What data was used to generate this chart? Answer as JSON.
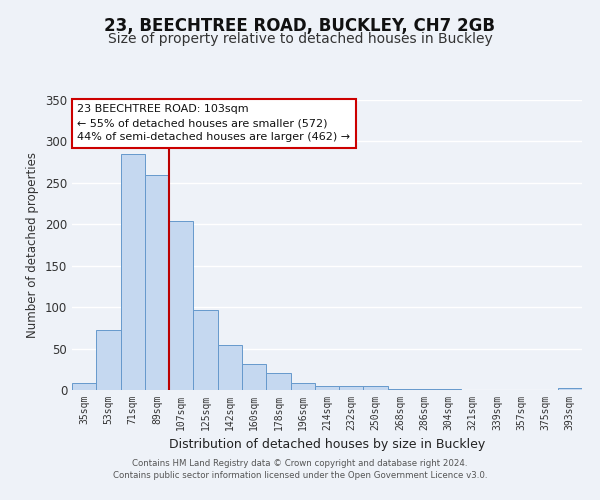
{
  "title": "23, BEECHTREE ROAD, BUCKLEY, CH7 2GB",
  "subtitle": "Size of property relative to detached houses in Buckley",
  "xlabel": "Distribution of detached houses by size in Buckley",
  "ylabel": "Number of detached properties",
  "bar_labels": [
    "35sqm",
    "53sqm",
    "71sqm",
    "89sqm",
    "107sqm",
    "125sqm",
    "142sqm",
    "160sqm",
    "178sqm",
    "196sqm",
    "214sqm",
    "232sqm",
    "250sqm",
    "268sqm",
    "286sqm",
    "304sqm",
    "321sqm",
    "339sqm",
    "357sqm",
    "375sqm",
    "393sqm"
  ],
  "bar_heights": [
    9,
    73,
    285,
    260,
    204,
    96,
    54,
    31,
    21,
    8,
    5,
    5,
    5,
    1,
    1,
    1,
    0,
    0,
    0,
    0,
    3
  ],
  "bar_color": "#c5d8f0",
  "bar_edge_color": "#6699cc",
  "bar_width": 1.0,
  "vline_color": "#bb0000",
  "vline_x": 3.5,
  "ylim": [
    0,
    350
  ],
  "yticks": [
    0,
    50,
    100,
    150,
    200,
    250,
    300,
    350
  ],
  "annotation_title": "23 BEECHTREE ROAD: 103sqm",
  "annotation_line1": "← 55% of detached houses are smaller (572)",
  "annotation_line2": "44% of semi-detached houses are larger (462) →",
  "annotation_box_color": "#ffffff",
  "annotation_box_edge": "#cc0000",
  "footer_line1": "Contains HM Land Registry data © Crown copyright and database right 2024.",
  "footer_line2": "Contains public sector information licensed under the Open Government Licence v3.0.",
  "background_color": "#eef2f8",
  "grid_color": "#ffffff",
  "title_fontsize": 12,
  "subtitle_fontsize": 10
}
